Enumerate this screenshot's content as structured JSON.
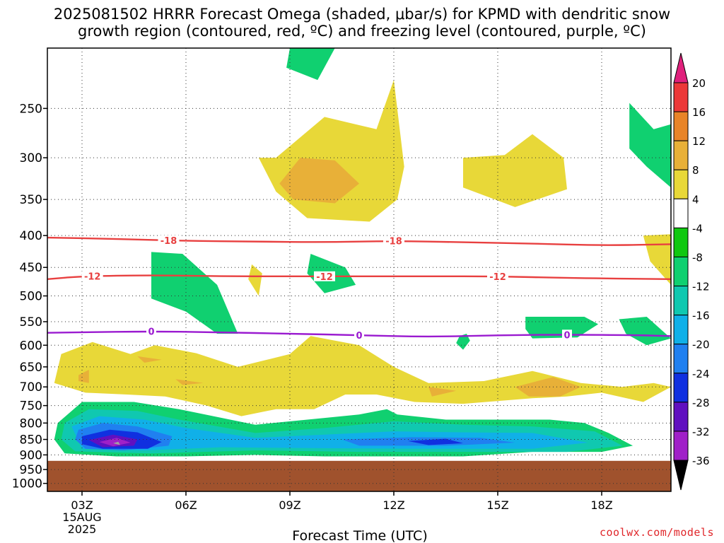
{
  "title": {
    "line1": "2025081502 HRRR Forecast Omega (shaded, μbar/s) for KPMD with dendritic snow",
    "line2": "growth region (contoured, red, ºC) and freezing level (contoured, purple, ºC)"
  },
  "credit": "coolwx.com/models",
  "chart_data": {
    "type": "heatmap",
    "title": "2025081502 HRRR Forecast Omega (shaded, μbar/s) for KPMD with dendritic snow growth region (contoured, red, ºC) and freezing level (contoured, purple, ºC)",
    "xlabel": "Forecast Time (UTC)",
    "ylabel": "",
    "x_ticks": [
      "03Z",
      "06Z",
      "09Z",
      "12Z",
      "15Z",
      "18Z"
    ],
    "x_tick_hours": [
      3,
      6,
      9,
      12,
      15,
      18
    ],
    "x_range_hours": [
      2,
      20
    ],
    "date_label": [
      "15AUG",
      "2025"
    ],
    "y_ticks": [
      250,
      300,
      350,
      400,
      450,
      500,
      550,
      600,
      650,
      700,
      750,
      800,
      850,
      900,
      950,
      1000
    ],
    "y_range_hPa": [
      200,
      1030
    ],
    "y_scale": "log-pressure, inverted",
    "grid": true,
    "surface_below_hPa": 920,
    "colorbar": {
      "levels": [
        -36,
        -32,
        -28,
        -24,
        -20,
        -16,
        -12,
        -8,
        -4,
        4,
        8,
        12,
        16,
        20
      ],
      "label_levels": [
        20,
        16,
        12,
        8,
        4,
        -4,
        -8,
        -12,
        -16,
        -20,
        -24,
        -28,
        -32,
        -36
      ],
      "colors": [
        "#a0a0a0",
        "#a020c8",
        "#6010c0",
        "#1030e0",
        "#2080f0",
        "#10b0e8",
        "#10c8b0",
        "#10d070",
        "#10c810",
        "#ffffff",
        "#e8d838",
        "#e8b038",
        "#e88428",
        "#ec3838",
        "#e0207c"
      ],
      "color_hex": {
        "lt_-36": "#000000",
        "-36_-32": "#a0a0a0",
        "-32_-28": "#a020c8",
        "-28_-24": "#6010c0",
        "-24_-20": "#1030e0",
        "-20_-16": "#2080f0",
        "-16_-12": "#10b0e8",
        "-12_-8": "#10c8b0",
        "-8_-4": "#10d070",
        "-4_4": "#ffffff",
        "4_8": "#e8d838",
        "8_12": "#e8b038",
        "12_16": "#e88428",
        "16_20": "#ec3838",
        "gt_20": "#e0207c"
      }
    },
    "contours": [
      {
        "name": "-18",
        "color": "#e84040",
        "labels_at_hours": [
          5.5,
          12
        ],
        "points_hour_hPa": [
          [
            2,
            403
          ],
          [
            4,
            405
          ],
          [
            6,
            408
          ],
          [
            8,
            409
          ],
          [
            10,
            410
          ],
          [
            12,
            408
          ],
          [
            14,
            410
          ],
          [
            16,
            412
          ],
          [
            18,
            415
          ],
          [
            20,
            413
          ]
        ]
      },
      {
        "name": "-12",
        "color": "#e84040",
        "labels_at_hours": [
          3.3,
          10,
          15
        ],
        "points_hour_hPa": [
          [
            2,
            470
          ],
          [
            3,
            465
          ],
          [
            5,
            463
          ],
          [
            7,
            465
          ],
          [
            9,
            465
          ],
          [
            11,
            465
          ],
          [
            13,
            465
          ],
          [
            15,
            465
          ],
          [
            17,
            468
          ],
          [
            20,
            470
          ]
        ]
      },
      {
        "name": "0",
        "color": "#9a1ad0",
        "labels_at_hours": [
          5,
          11,
          17
        ],
        "points_hour_hPa": [
          [
            2,
            573
          ],
          [
            3,
            572
          ],
          [
            5,
            570
          ],
          [
            7,
            572
          ],
          [
            9,
            575
          ],
          [
            11,
            578
          ],
          [
            13,
            582
          ],
          [
            15,
            578
          ],
          [
            17,
            577
          ],
          [
            19,
            578
          ],
          [
            20,
            580
          ]
        ]
      }
    ],
    "omega_regions": [
      {
        "level": "4_8",
        "hour_hPa": [
          [
            8.6,
            300
          ],
          [
            10,
            258
          ],
          [
            11.5,
            270
          ],
          [
            12,
            225
          ],
          [
            12.3,
            310
          ],
          [
            12.1,
            350
          ],
          [
            11.3,
            380
          ],
          [
            9.5,
            375
          ],
          [
            8.6,
            340
          ],
          [
            8.1,
            300
          ]
        ]
      },
      {
        "level": "8_12",
        "hour_hPa": [
          [
            8.7,
            330
          ],
          [
            9.3,
            300
          ],
          [
            10.3,
            303
          ],
          [
            11,
            330
          ],
          [
            10.3,
            355
          ],
          [
            9.1,
            350
          ]
        ]
      },
      {
        "level": "4_8",
        "hour_hPa": [
          [
            14,
            300
          ],
          [
            15.2,
            297
          ],
          [
            16,
            275
          ],
          [
            16.9,
            300
          ],
          [
            17,
            337
          ],
          [
            15.5,
            360
          ],
          [
            14,
            335
          ]
        ]
      },
      {
        "level": "4_8",
        "hour_hPa": [
          [
            19.2,
            400
          ],
          [
            20,
            398
          ],
          [
            20,
            480
          ],
          [
            19.4,
            440
          ]
        ]
      },
      {
        "level": "4_8",
        "hour_hPa": [
          [
            7.9,
            445
          ],
          [
            8.2,
            460
          ],
          [
            8.1,
            500
          ],
          [
            7.8,
            470
          ]
        ]
      },
      {
        "level": "-8_-4",
        "hour_hPa": [
          [
            9,
            200
          ],
          [
            10.3,
            200
          ],
          [
            9.8,
            225
          ],
          [
            8.9,
            215
          ]
        ]
      },
      {
        "level": "-8_-4",
        "hour_hPa": [
          [
            18.8,
            245
          ],
          [
            19.5,
            270
          ],
          [
            20,
            265
          ],
          [
            20,
            335
          ],
          [
            19.3,
            310
          ],
          [
            18.8,
            290
          ]
        ]
      },
      {
        "level": "-8_-4",
        "hour_hPa": [
          [
            5,
            425
          ],
          [
            5.9,
            428
          ],
          [
            6.9,
            480
          ],
          [
            7.5,
            575
          ],
          [
            6.9,
            575
          ],
          [
            6,
            530
          ],
          [
            5,
            505
          ]
        ]
      },
      {
        "level": "-8_-4",
        "hour_hPa": [
          [
            9.6,
            428
          ],
          [
            10.6,
            450
          ],
          [
            10.9,
            480
          ],
          [
            10,
            495
          ],
          [
            9.5,
            460
          ]
        ]
      },
      {
        "level": "-8_-4",
        "hour_hPa": [
          [
            15.8,
            540
          ],
          [
            17.5,
            540
          ],
          [
            17.9,
            555
          ],
          [
            17.3,
            583
          ],
          [
            16,
            585
          ],
          [
            15.8,
            565
          ]
        ]
      },
      {
        "level": "-8_-4",
        "hour_hPa": [
          [
            18.5,
            545
          ],
          [
            19.3,
            540
          ],
          [
            20,
            585
          ],
          [
            19.3,
            600
          ],
          [
            18.7,
            575
          ]
        ]
      },
      {
        "level": "-8_-4",
        "hour_hPa": [
          [
            13.9,
            580
          ],
          [
            14.1,
            575
          ],
          [
            14.2,
            590
          ],
          [
            14,
            610
          ],
          [
            13.8,
            595
          ]
        ]
      },
      {
        "level": "4_8",
        "hour_hPa": [
          [
            2.4,
            620
          ],
          [
            3.3,
            593
          ],
          [
            4.4,
            620
          ],
          [
            5.1,
            600
          ],
          [
            6.3,
            618
          ],
          [
            7.5,
            650
          ],
          [
            9,
            620
          ],
          [
            9.6,
            580
          ],
          [
            11,
            600
          ],
          [
            12,
            650
          ],
          [
            13,
            690
          ],
          [
            14.6,
            685
          ],
          [
            16,
            660
          ],
          [
            17.4,
            690
          ],
          [
            18.6,
            700
          ],
          [
            19.5,
            690
          ],
          [
            20,
            700
          ],
          [
            19.2,
            740
          ],
          [
            18,
            715
          ],
          [
            17,
            725
          ],
          [
            16,
            730
          ],
          [
            14,
            745
          ],
          [
            12.6,
            740
          ],
          [
            11.5,
            720
          ],
          [
            10.6,
            720
          ],
          [
            9.7,
            760
          ],
          [
            8.6,
            760
          ],
          [
            7.6,
            780
          ],
          [
            6.6,
            750
          ],
          [
            5.4,
            725
          ],
          [
            4.3,
            720
          ],
          [
            3.1,
            715
          ],
          [
            2.2,
            690
          ]
        ]
      },
      {
        "level": "8_12",
        "hour_hPa": [
          [
            2.9,
            670
          ],
          [
            3.2,
            657
          ],
          [
            3.2,
            690
          ],
          [
            2.9,
            685
          ]
        ]
      },
      {
        "level": "8_12",
        "hour_hPa": [
          [
            4.6,
            625
          ],
          [
            5.3,
            633
          ],
          [
            4.8,
            640
          ]
        ]
      },
      {
        "level": "8_12",
        "hour_hPa": [
          [
            5.7,
            680
          ],
          [
            6.5,
            690
          ],
          [
            5.9,
            695
          ]
        ]
      },
      {
        "level": "8_12",
        "hour_hPa": [
          [
            13,
            700
          ],
          [
            13.8,
            710
          ],
          [
            13.1,
            725
          ]
        ]
      },
      {
        "level": "8_12",
        "hour_hPa": [
          [
            15.5,
            700
          ],
          [
            16.6,
            675
          ],
          [
            17.4,
            700
          ],
          [
            16.8,
            725
          ],
          [
            15.9,
            725
          ]
        ]
      },
      {
        "level": "-8_-4",
        "hour_hPa": [
          [
            2.3,
            800
          ],
          [
            3,
            740
          ],
          [
            4.5,
            740
          ],
          [
            5.8,
            760
          ],
          [
            8,
            805
          ],
          [
            10,
            785
          ],
          [
            11,
            775
          ],
          [
            11.8,
            760
          ],
          [
            12.1,
            775
          ],
          [
            13.5,
            790
          ],
          [
            15,
            790
          ],
          [
            16.5,
            790
          ],
          [
            17.5,
            800
          ],
          [
            18.2,
            830
          ],
          [
            18.9,
            870
          ],
          [
            18,
            890
          ],
          [
            16,
            890
          ],
          [
            14,
            905
          ],
          [
            12,
            905
          ],
          [
            10,
            905
          ],
          [
            8,
            900
          ],
          [
            6,
            905
          ],
          [
            4,
            905
          ],
          [
            2.5,
            895
          ],
          [
            2.2,
            850
          ]
        ]
      },
      {
        "level": "-12_-8",
        "hour_hPa": [
          [
            2.5,
            800
          ],
          [
            3.2,
            760
          ],
          [
            4.6,
            765
          ],
          [
            5.8,
            790
          ],
          [
            8,
            830
          ],
          [
            10,
            815
          ],
          [
            12,
            795
          ],
          [
            14,
            805
          ],
          [
            16,
            810
          ],
          [
            17.8,
            825
          ],
          [
            18.6,
            870
          ],
          [
            17,
            890
          ],
          [
            14,
            890
          ],
          [
            11,
            890
          ],
          [
            8,
            885
          ],
          [
            5,
            895
          ],
          [
            2.8,
            888
          ],
          [
            2.4,
            850
          ]
        ]
      },
      {
        "level": "-16_-12",
        "hour_hPa": [
          [
            2.7,
            810
          ],
          [
            3.5,
            780
          ],
          [
            4.8,
            790
          ],
          [
            6,
            815
          ],
          [
            8,
            845
          ],
          [
            10,
            835
          ],
          [
            12,
            825
          ],
          [
            14,
            828
          ],
          [
            16,
            830
          ],
          [
            17.6,
            860
          ],
          [
            16,
            880
          ],
          [
            13,
            880
          ],
          [
            10,
            878
          ],
          [
            7,
            875
          ],
          [
            4.8,
            885
          ],
          [
            3,
            880
          ]
        ]
      },
      {
        "level": "-20_-16",
        "hour_hPa": [
          [
            2.9,
            820
          ],
          [
            3.6,
            800
          ],
          [
            4.6,
            810
          ],
          [
            5.6,
            840
          ],
          [
            5.5,
            870
          ],
          [
            4.2,
            885
          ],
          [
            3.1,
            880
          ],
          [
            2.8,
            850
          ]
        ]
      },
      {
        "level": "-20_-16",
        "hour_hPa": [
          [
            10.5,
            850
          ],
          [
            12.5,
            843
          ],
          [
            14.5,
            845
          ],
          [
            15.5,
            860
          ],
          [
            13.5,
            870
          ],
          [
            11,
            870
          ]
        ]
      },
      {
        "level": "-24_-20",
        "hour_hPa": [
          [
            3,
            840
          ],
          [
            3.8,
            820
          ],
          [
            4.6,
            828
          ],
          [
            5.3,
            858
          ],
          [
            4.9,
            880
          ],
          [
            3.6,
            880
          ],
          [
            3,
            865
          ]
        ]
      },
      {
        "level": "-24_-20",
        "hour_hPa": [
          [
            12.4,
            855
          ],
          [
            13.5,
            848
          ],
          [
            14,
            862
          ],
          [
            13,
            868
          ]
        ]
      },
      {
        "level": "-28_-24",
        "hour_hPa": [
          [
            3.2,
            852
          ],
          [
            3.9,
            835
          ],
          [
            4.6,
            850
          ],
          [
            4.5,
            870
          ],
          [
            3.6,
            875
          ]
        ]
      },
      {
        "level": "-32_-28",
        "hour_hPa": [
          [
            3.5,
            858
          ],
          [
            4,
            845
          ],
          [
            4.4,
            860
          ],
          [
            3.9,
            872
          ]
        ]
      },
      {
        "level": "-36_-32",
        "hour_hPa": [
          [
            3.9,
            862
          ],
          [
            4.05,
            857
          ],
          [
            4.1,
            868
          ]
        ]
      }
    ]
  }
}
